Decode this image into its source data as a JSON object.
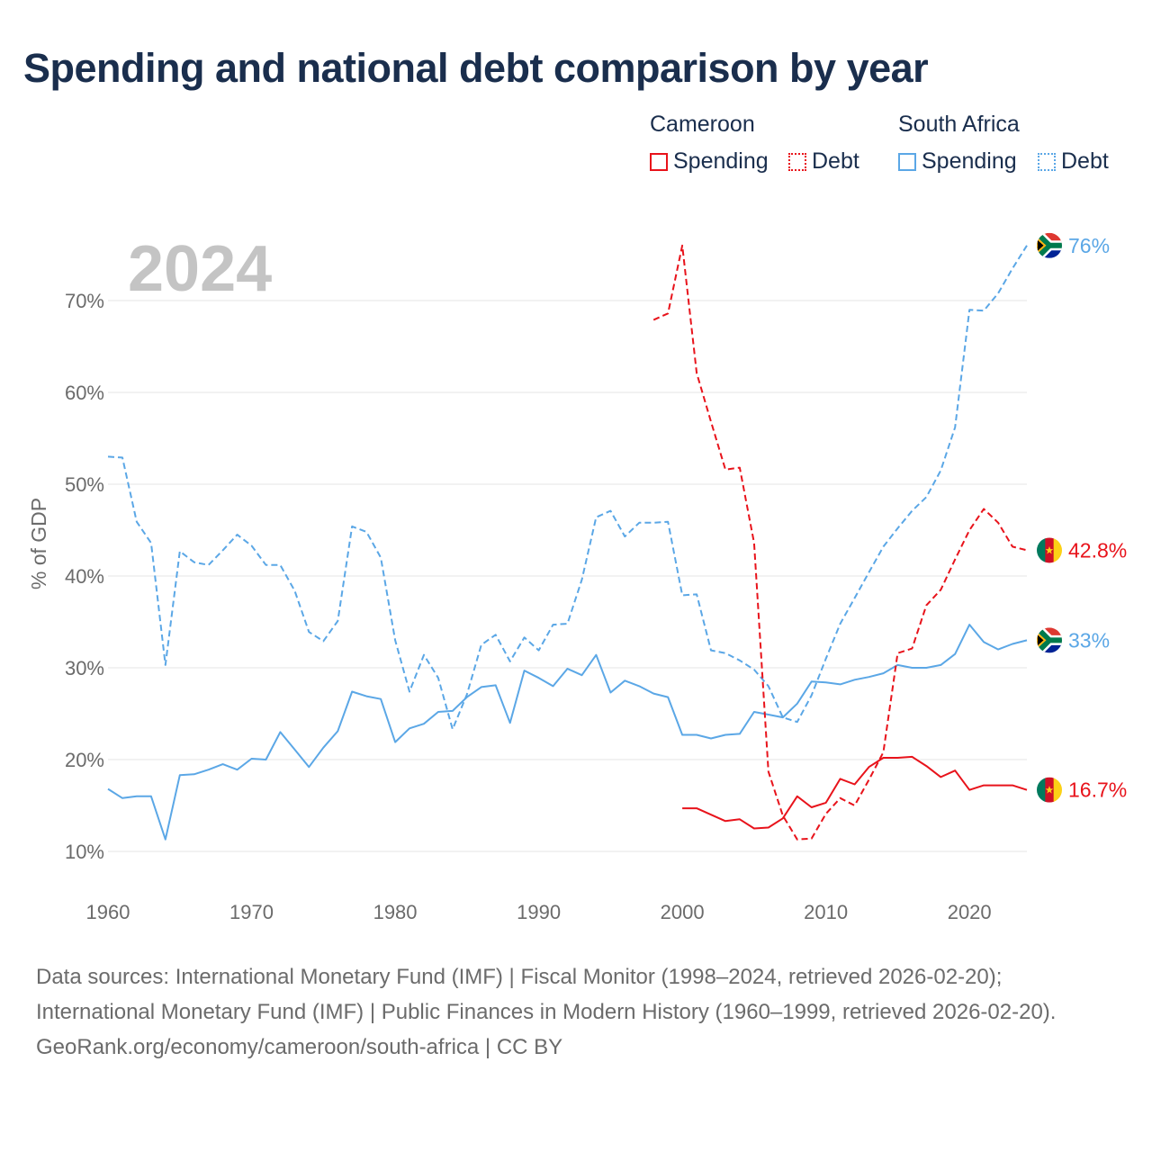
{
  "title": "Spending and national debt comparison by year",
  "legend": {
    "cameroon": {
      "country": "Cameroon",
      "spending": "Spending",
      "debt": "Debt",
      "color": "#e8131b"
    },
    "south_africa": {
      "country": "South Africa",
      "spending": "Spending",
      "debt": "Debt",
      "color": "#5ba7e6"
    }
  },
  "footer": {
    "sources": "Data sources: International Monetary Fund (IMF) | Fiscal Monitor (1998–2024, retrieved 2026-02-20); International Monetary Fund (IMF) | Public Finances in Modern History (1960–1999, retrieved 2026-02-20).",
    "credit": "GeoRank.org/economy/cameroon/south-africa | CC BY"
  },
  "chart_data": {
    "type": "line",
    "year_label": "2024",
    "ylabel": "% of GDP",
    "xlim": [
      1960,
      2024
    ],
    "ylim": [
      10,
      76
    ],
    "x_ticks": [
      1960,
      1970,
      1980,
      1990,
      2000,
      2010,
      2020
    ],
    "y_ticks": [
      {
        "value": 10,
        "label": "10%"
      },
      {
        "value": 20,
        "label": "20%"
      },
      {
        "value": 30,
        "label": "30%"
      },
      {
        "value": 40,
        "label": "40%"
      },
      {
        "value": 50,
        "label": "50%"
      },
      {
        "value": 60,
        "label": "60%"
      },
      {
        "value": 70,
        "label": "70%"
      }
    ],
    "series": [
      {
        "name": "South Africa Debt",
        "country": "South Africa",
        "kind": "debt",
        "color": "#5ba7e6",
        "dashed": true,
        "end_label": "76%",
        "points": [
          [
            1960,
            53.0
          ],
          [
            1961,
            52.9
          ],
          [
            1962,
            45.9
          ],
          [
            1963,
            43.6
          ],
          [
            1964,
            30.3
          ],
          [
            1965,
            42.7
          ],
          [
            1966,
            41.5
          ],
          [
            1967,
            41.2
          ],
          [
            1968,
            42.8
          ],
          [
            1969,
            44.5
          ],
          [
            1970,
            43.3
          ],
          [
            1971,
            41.2
          ],
          [
            1972,
            41.2
          ],
          [
            1973,
            38.4
          ],
          [
            1974,
            33.9
          ],
          [
            1975,
            32.9
          ],
          [
            1976,
            35.1
          ],
          [
            1977,
            45.4
          ],
          [
            1978,
            44.8
          ],
          [
            1979,
            42.0
          ],
          [
            1980,
            33.0
          ],
          [
            1981,
            27.4
          ],
          [
            1982,
            31.4
          ],
          [
            1983,
            28.9
          ],
          [
            1984,
            23.3
          ],
          [
            1985,
            27.1
          ],
          [
            1986,
            32.5
          ],
          [
            1987,
            33.6
          ],
          [
            1988,
            30.7
          ],
          [
            1989,
            33.3
          ],
          [
            1990,
            31.9
          ],
          [
            1991,
            34.7
          ],
          [
            1992,
            34.8
          ],
          [
            1993,
            39.6
          ],
          [
            1994,
            46.4
          ],
          [
            1995,
            47.1
          ],
          [
            1996,
            44.3
          ],
          [
            1997,
            45.8
          ],
          [
            1998,
            45.8
          ],
          [
            1999,
            45.9
          ],
          [
            2000,
            37.9
          ],
          [
            2001,
            38.0
          ],
          [
            2002,
            31.9
          ],
          [
            2003,
            31.6
          ],
          [
            2004,
            30.8
          ],
          [
            2005,
            29.8
          ],
          [
            2006,
            28.0
          ],
          [
            2007,
            24.6
          ],
          [
            2008,
            24.1
          ],
          [
            2009,
            27.0
          ],
          [
            2010,
            31.0
          ],
          [
            2011,
            34.8
          ],
          [
            2012,
            37.6
          ],
          [
            2013,
            40.4
          ],
          [
            2014,
            43.2
          ],
          [
            2015,
            45.2
          ],
          [
            2016,
            47.1
          ],
          [
            2017,
            48.6
          ],
          [
            2018,
            51.5
          ],
          [
            2019,
            56.2
          ],
          [
            2020,
            69.0
          ],
          [
            2021,
            68.9
          ],
          [
            2022,
            70.8
          ],
          [
            2023,
            73.5
          ],
          [
            2024,
            76.0
          ]
        ]
      },
      {
        "name": "South Africa Spending",
        "country": "South Africa",
        "kind": "spending",
        "color": "#5ba7e6",
        "dashed": false,
        "end_label": "33%",
        "points": [
          [
            1960,
            16.8
          ],
          [
            1961,
            15.8
          ],
          [
            1962,
            16.0
          ],
          [
            1963,
            16.0
          ],
          [
            1964,
            11.3
          ],
          [
            1965,
            18.3
          ],
          [
            1966,
            18.4
          ],
          [
            1967,
            18.9
          ],
          [
            1968,
            19.5
          ],
          [
            1969,
            18.9
          ],
          [
            1970,
            20.1
          ],
          [
            1971,
            20.0
          ],
          [
            1972,
            23.0
          ],
          [
            1973,
            21.1
          ],
          [
            1974,
            19.2
          ],
          [
            1975,
            21.3
          ],
          [
            1976,
            23.1
          ],
          [
            1977,
            27.4
          ],
          [
            1978,
            26.9
          ],
          [
            1979,
            26.6
          ],
          [
            1980,
            21.9
          ],
          [
            1981,
            23.4
          ],
          [
            1982,
            23.9
          ],
          [
            1983,
            25.2
          ],
          [
            1984,
            25.3
          ],
          [
            1985,
            26.8
          ],
          [
            1986,
            27.9
          ],
          [
            1987,
            28.1
          ],
          [
            1988,
            24.0
          ],
          [
            1989,
            29.7
          ],
          [
            1990,
            28.9
          ],
          [
            1991,
            28.0
          ],
          [
            1992,
            29.9
          ],
          [
            1993,
            29.2
          ],
          [
            1994,
            31.4
          ],
          [
            1995,
            27.3
          ],
          [
            1996,
            28.6
          ],
          [
            1997,
            28.0
          ],
          [
            1998,
            27.2
          ],
          [
            1999,
            26.8
          ],
          [
            2000,
            22.7
          ],
          [
            2001,
            22.7
          ],
          [
            2002,
            22.3
          ],
          [
            2003,
            22.7
          ],
          [
            2004,
            22.8
          ],
          [
            2005,
            25.2
          ],
          [
            2006,
            24.9
          ],
          [
            2007,
            24.6
          ],
          [
            2008,
            26.1
          ],
          [
            2009,
            28.5
          ],
          [
            2010,
            28.4
          ],
          [
            2011,
            28.2
          ],
          [
            2012,
            28.7
          ],
          [
            2013,
            29.0
          ],
          [
            2014,
            29.4
          ],
          [
            2015,
            30.3
          ],
          [
            2016,
            30.0
          ],
          [
            2017,
            30.0
          ],
          [
            2018,
            30.3
          ],
          [
            2019,
            31.5
          ],
          [
            2020,
            34.7
          ],
          [
            2021,
            32.8
          ],
          [
            2022,
            32.0
          ],
          [
            2023,
            32.6
          ],
          [
            2024,
            33.0
          ]
        ]
      },
      {
        "name": "Cameroon Debt",
        "country": "Cameroon",
        "kind": "debt",
        "color": "#e8131b",
        "dashed": true,
        "end_label": "42.8%",
        "points": [
          [
            1998,
            67.9
          ],
          [
            1999,
            68.6
          ],
          [
            2000,
            76.0
          ],
          [
            2001,
            62.1
          ],
          [
            2002,
            56.8
          ],
          [
            2003,
            51.6
          ],
          [
            2004,
            51.8
          ],
          [
            2005,
            43.6
          ],
          [
            2006,
            18.7
          ],
          [
            2007,
            13.9
          ],
          [
            2008,
            11.3
          ],
          [
            2009,
            11.4
          ],
          [
            2010,
            14.1
          ],
          [
            2011,
            15.8
          ],
          [
            2012,
            15.0
          ],
          [
            2013,
            17.8
          ],
          [
            2014,
            20.8
          ],
          [
            2015,
            31.6
          ],
          [
            2016,
            32.1
          ],
          [
            2017,
            36.8
          ],
          [
            2018,
            38.5
          ],
          [
            2019,
            41.8
          ],
          [
            2020,
            45.0
          ],
          [
            2021,
            47.3
          ],
          [
            2022,
            45.8
          ],
          [
            2023,
            43.2
          ],
          [
            2024,
            42.8
          ]
        ]
      },
      {
        "name": "Cameroon Spending",
        "country": "Cameroon",
        "kind": "spending",
        "color": "#e8131b",
        "dashed": false,
        "end_label": "16.7%",
        "points": [
          [
            2000,
            14.7
          ],
          [
            2001,
            14.7
          ],
          [
            2002,
            14.0
          ],
          [
            2003,
            13.3
          ],
          [
            2004,
            13.5
          ],
          [
            2005,
            12.5
          ],
          [
            2006,
            12.6
          ],
          [
            2007,
            13.6
          ],
          [
            2008,
            16.0
          ],
          [
            2009,
            14.8
          ],
          [
            2010,
            15.3
          ],
          [
            2011,
            17.9
          ],
          [
            2012,
            17.3
          ],
          [
            2013,
            19.2
          ],
          [
            2014,
            20.2
          ],
          [
            2015,
            20.2
          ],
          [
            2016,
            20.3
          ],
          [
            2017,
            19.3
          ],
          [
            2018,
            18.1
          ],
          [
            2019,
            18.8
          ],
          [
            2020,
            16.7
          ],
          [
            2021,
            17.2
          ],
          [
            2022,
            17.2
          ],
          [
            2023,
            17.2
          ],
          [
            2024,
            16.7
          ]
        ]
      }
    ]
  }
}
